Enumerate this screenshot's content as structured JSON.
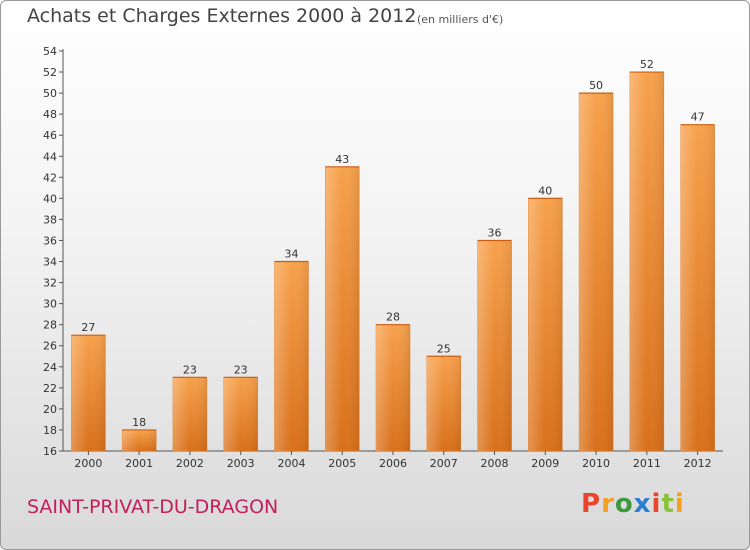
{
  "header": {
    "title": "Achats et Charges Externes 2000 à 2012",
    "subtitle": "(en milliers d'€)"
  },
  "footer": {
    "commune": "SAINT-PRIVAT-DU-DRAGON",
    "logo_text": [
      "P",
      "r",
      "o",
      "x",
      "i",
      "t",
      "i"
    ],
    "logo_colors": [
      "#e8452c",
      "#f4a020",
      "#3c9a3c",
      "#2a7fd0",
      "#e8452c",
      "#8bc23c",
      "#f4a020"
    ]
  },
  "chart_data": {
    "type": "bar",
    "categories": [
      "2000",
      "2001",
      "2002",
      "2003",
      "2004",
      "2005",
      "2006",
      "2007",
      "2008",
      "2009",
      "2010",
      "2011",
      "2012"
    ],
    "values": [
      27,
      18,
      23,
      23,
      34,
      43,
      28,
      25,
      36,
      40,
      50,
      52,
      47
    ],
    "data_labels": [
      "27",
      "18",
      "23",
      "23",
      "34",
      "43",
      "28",
      "25",
      "36",
      "40",
      "50",
      "52",
      "47"
    ],
    "title": "Achats et Charges Externes 2000 à 2012",
    "xlabel": "",
    "ylabel": "",
    "ylim": [
      16,
      54
    ],
    "yticks": [
      "16",
      "18",
      "20",
      "22",
      "24",
      "26",
      "28",
      "30",
      "32",
      "34",
      "36",
      "38",
      "40",
      "42",
      "44",
      "46",
      "48",
      "50",
      "52",
      "54"
    ],
    "grid": false,
    "bar_color": "#f0902e"
  }
}
